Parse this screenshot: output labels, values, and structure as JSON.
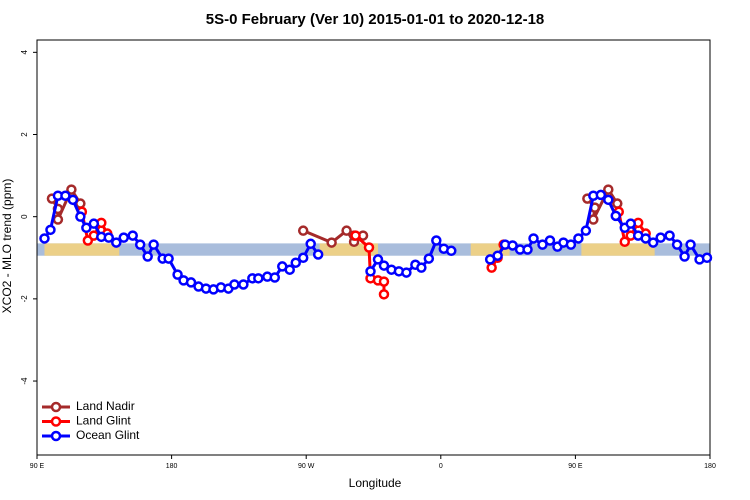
{
  "chart_data": {
    "type": "line",
    "title": "5S-0 February (Ver 10)   2015-01-01 to 2020-12-18",
    "x_label": "Longitude",
    "y_label": "XCO2 - MLO trend (ppm)",
    "xlim": [
      90,
      540
    ],
    "ylim": [
      -5.8,
      4.3
    ],
    "xticks": [
      {
        "value": 90,
        "label": "90 E"
      },
      {
        "value": 180,
        "label": "180"
      },
      {
        "value": 270,
        "label": "90 W"
      },
      {
        "value": 360,
        "label": "0"
      },
      {
        "value": 450,
        "label": "90 E"
      },
      {
        "value": 540,
        "label": "180"
      }
    ],
    "yticks": [
      -4,
      -2,
      0,
      2,
      4
    ],
    "legend": "bottom-left",
    "reference_band": {
      "ylim": [
        -0.95,
        -0.65
      ],
      "color": "#a9bddc",
      "land_color": "#f3d27e",
      "land": [
        [
          95,
          145
        ],
        [
          279,
          318
        ],
        [
          380,
          406
        ],
        [
          454,
          503
        ]
      ]
    },
    "series": [
      {
        "name": "Land Nadir",
        "color": "#a52a2a",
        "x": [
          100,
          104,
          104,
          113,
          119,
          null,
          268,
          287,
          297,
          302,
          302,
          308,
          null,
          458,
          463,
          462,
          472,
          478
        ],
        "values": [
          0.44,
          0.19,
          -0.07,
          0.66,
          0.32,
          null,
          -0.34,
          -0.63,
          -0.34,
          -0.61,
          -0.46,
          -0.46,
          null,
          0.44,
          0.22,
          -0.07,
          0.66,
          0.32
        ]
      },
      {
        "name": "Land Glint",
        "color": "#ff0000",
        "x": [
          120,
          124,
          128,
          133,
          137,
          null,
          303,
          312,
          313,
          318,
          322,
          322,
          null,
          394,
          398,
          402,
          null,
          479,
          483,
          487,
          492,
          497
        ],
        "values": [
          0.12,
          -0.58,
          -0.46,
          -0.15,
          -0.41,
          null,
          -0.46,
          -0.75,
          -1.5,
          -1.55,
          -1.58,
          -1.89,
          null,
          -1.24,
          -1,
          -0.68,
          null,
          0.12,
          -0.61,
          -0.46,
          -0.15,
          -0.41
        ]
      },
      {
        "name": "Ocean Glint",
        "color": "#0000ff",
        "x": [
          95,
          99,
          104,
          109,
          114,
          119,
          123,
          128,
          133,
          138,
          143,
          148,
          154,
          159,
          164,
          168,
          174,
          178,
          184,
          188,
          193,
          198,
          203,
          208,
          213,
          218,
          222,
          228,
          234,
          238,
          244,
          249,
          254,
          259,
          263,
          268,
          273,
          278,
          null,
          313,
          318,
          322,
          327,
          332,
          337,
          343,
          347,
          352,
          357,
          362,
          367,
          null,
          393,
          398,
          403,
          408,
          413,
          418,
          422,
          428,
          433,
          438,
          442,
          447,
          452,
          457,
          462,
          467,
          472,
          477,
          483,
          487,
          492,
          497,
          502,
          507,
          513,
          518,
          523,
          527,
          533,
          538
        ],
        "values": [
          -0.53,
          -0.32,
          0.51,
          0.51,
          0.41,
          0,
          -0.27,
          -0.17,
          -0.49,
          -0.51,
          -0.63,
          -0.51,
          -0.46,
          -0.68,
          -0.97,
          -0.68,
          -1.02,
          -1.02,
          -1.41,
          -1.55,
          -1.6,
          -1.7,
          -1.75,
          -1.77,
          -1.72,
          -1.75,
          -1.65,
          -1.65,
          -1.5,
          -1.5,
          -1.46,
          -1.48,
          -1.21,
          -1.29,
          -1.12,
          -1,
          -0.66,
          -0.92,
          null,
          -1.33,
          -1.04,
          -1.19,
          -1.29,
          -1.33,
          -1.36,
          -1.17,
          -1.24,
          -1.02,
          -0.58,
          -0.78,
          -0.83,
          null,
          -1.04,
          -0.95,
          -0.68,
          -0.7,
          -0.8,
          -0.8,
          -0.53,
          -0.68,
          -0.58,
          -0.73,
          -0.63,
          -0.68,
          -0.53,
          -0.34,
          0.51,
          0.53,
          0.41,
          0.02,
          -0.27,
          -0.17,
          -0.46,
          -0.53,
          -0.63,
          -0.51,
          -0.46,
          -0.68,
          -0.97,
          -0.68,
          -1.04,
          -1
        ]
      }
    ]
  }
}
